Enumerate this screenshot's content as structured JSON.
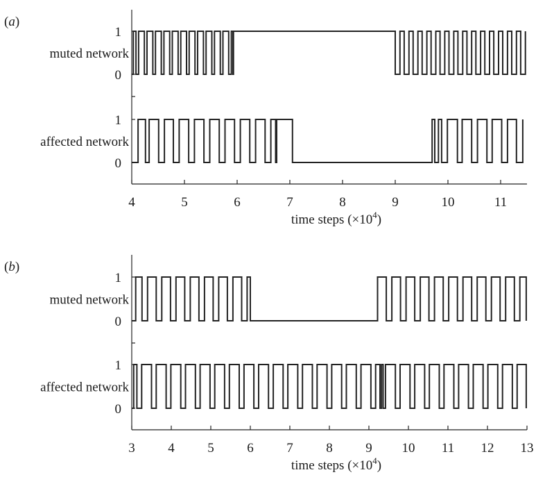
{
  "chart_data": [
    {
      "type": "line",
      "panel_label": "(a)",
      "xlabel": "time steps (×10",
      "xlabel_exp": "4",
      "xlabel_close": ")",
      "xlim": [
        4,
        11.5
      ],
      "x_ticks": [
        "4",
        "5",
        "6",
        "7",
        "8",
        "9",
        "10",
        "11"
      ],
      "series": [
        {
          "name": "muted network",
          "y_ticks": [
            "1",
            "0"
          ],
          "transitions": [
            4.03,
            4.08,
            4.13,
            4.24,
            4.29,
            4.4,
            4.45,
            4.56,
            4.61,
            4.72,
            4.77,
            4.88,
            4.93,
            5.04,
            5.09,
            5.2,
            5.25,
            5.36,
            5.41,
            5.52,
            5.57,
            5.68,
            5.73,
            5.84,
            5.89,
            5.92,
            5.93,
            9.0,
            9.09,
            9.17,
            9.26,
            9.34,
            9.43,
            9.51,
            9.6,
            9.68,
            9.77,
            9.85,
            9.94,
            10.02,
            10.11,
            10.19,
            10.28,
            10.36,
            10.45,
            10.53,
            10.62,
            10.7,
            10.79,
            10.87,
            10.96,
            11.04,
            11.13,
            11.21,
            11.3,
            11.38,
            11.47
          ],
          "start_level": 0
        },
        {
          "name": "affected network",
          "y_ticks": [
            "1",
            "0"
          ],
          "transitions": [
            4.12,
            4.26,
            4.33,
            4.51,
            4.62,
            4.79,
            4.9,
            5.08,
            5.19,
            5.37,
            5.48,
            5.66,
            5.77,
            5.95,
            6.06,
            6.24,
            6.35,
            6.53,
            6.64,
            6.73,
            6.75,
            7.05,
            9.7,
            9.75,
            9.82,
            9.88,
            9.99,
            10.18,
            10.27,
            10.45,
            10.56,
            10.74,
            10.84,
            11.02,
            11.13,
            11.3,
            11.42
          ],
          "start_level": 0
        }
      ]
    },
    {
      "type": "line",
      "panel_label": "(b)",
      "xlabel": "time steps (×10",
      "xlabel_exp": "4",
      "xlabel_close": ")",
      "xlim": [
        3,
        13
      ],
      "x_ticks": [
        "3",
        "4",
        "5",
        "6",
        "7",
        "8",
        "9",
        "10",
        "11",
        "12",
        "13"
      ],
      "series": [
        {
          "name": "muted network",
          "y_ticks": [
            "1",
            "0"
          ],
          "transitions": [
            3.1,
            3.26,
            3.4,
            3.62,
            3.76,
            3.98,
            4.12,
            4.34,
            4.48,
            4.7,
            4.84,
            5.06,
            5.2,
            5.42,
            5.56,
            5.78,
            5.92,
            6.0,
            9.22,
            9.44,
            9.58,
            9.8,
            9.94,
            10.16,
            10.3,
            10.52,
            10.66,
            10.88,
            11.02,
            11.24,
            11.38,
            11.6,
            11.74,
            11.96,
            12.1,
            12.32,
            12.46,
            12.68,
            12.82,
            12.98
          ],
          "start_level": 0
        },
        {
          "name": "affected network",
          "y_ticks": [
            "1",
            "0"
          ],
          "transitions": [
            3.05,
            3.13,
            3.25,
            3.5,
            3.62,
            3.87,
            3.99,
            4.24,
            4.36,
            4.61,
            4.73,
            4.98,
            5.1,
            5.35,
            5.47,
            5.72,
            5.84,
            6.09,
            6.21,
            6.46,
            6.58,
            6.83,
            6.95,
            7.2,
            7.32,
            7.57,
            7.69,
            7.94,
            8.06,
            8.31,
            8.43,
            8.68,
            8.8,
            9.05,
            9.17,
            9.28,
            9.32,
            9.36,
            9.42,
            9.67,
            9.79,
            10.04,
            10.16,
            10.41,
            10.53,
            10.78,
            10.9,
            11.15,
            11.27,
            11.52,
            11.64,
            11.89,
            12.01,
            12.26,
            12.38,
            12.63,
            12.75,
            12.98
          ],
          "start_level": 0
        }
      ]
    }
  ]
}
